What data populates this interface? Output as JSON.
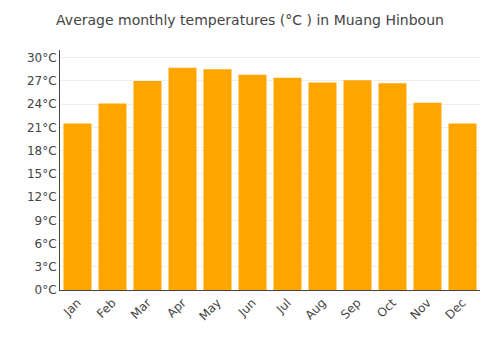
{
  "chart_data": {
    "type": "bar",
    "title": "Average monthly temperatures (°C ) in Muang Hinboun",
    "categories": [
      "Jan",
      "Feb",
      "Mar",
      "Apr",
      "May",
      "Jun",
      "Jul",
      "Aug",
      "Sep",
      "Oct",
      "Nov",
      "Dec"
    ],
    "values": [
      21.5,
      24.1,
      27.0,
      28.7,
      28.5,
      27.8,
      27.4,
      26.8,
      27.1,
      26.7,
      24.2,
      21.5
    ],
    "color": "#FFA500",
    "ylim": [
      0,
      31
    ],
    "yticks": [
      {
        "value": 0,
        "label": "0°C"
      },
      {
        "value": 3,
        "label": "3°C"
      },
      {
        "value": 6,
        "label": "6°C"
      },
      {
        "value": 9,
        "label": "9°C"
      },
      {
        "value": 12,
        "label": "12°C"
      },
      {
        "value": 15,
        "label": "15°C"
      },
      {
        "value": 18,
        "label": "18°C"
      },
      {
        "value": 21,
        "label": "21°C"
      },
      {
        "value": 24,
        "label": "24°C"
      },
      {
        "value": 27,
        "label": "27°C"
      },
      {
        "value": 30,
        "label": "30°C"
      }
    ],
    "grid": true
  }
}
